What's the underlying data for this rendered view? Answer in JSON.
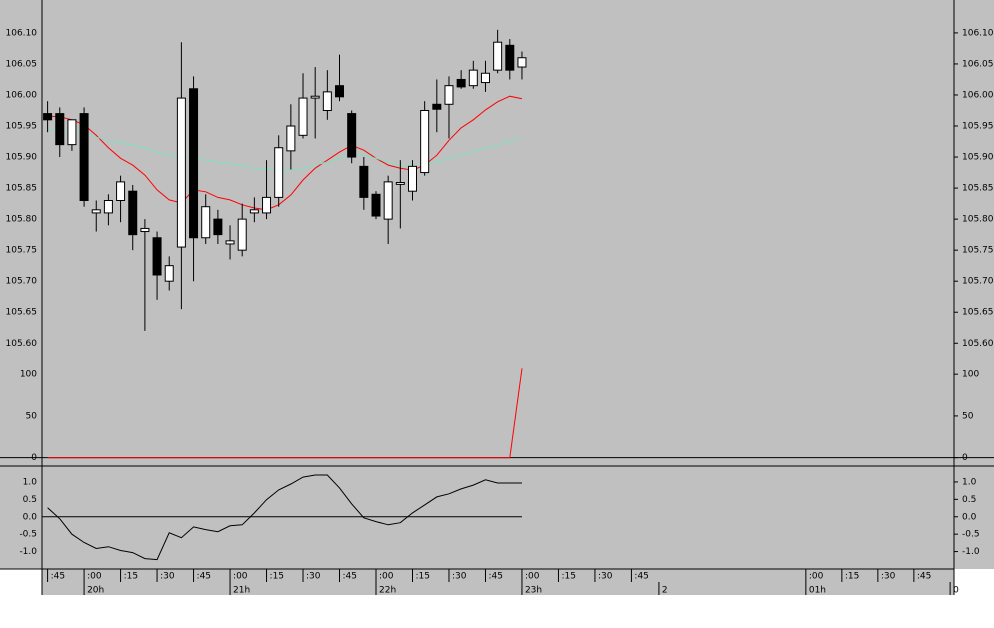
{
  "chart_data": [
    {
      "type": "candlestick",
      "x": [
        1185,
        1190,
        1195,
        1200,
        1205,
        1210,
        1215,
        1220,
        1225,
        1230,
        1235,
        1240,
        1245,
        1250,
        1255,
        1260,
        1265,
        1270,
        1275,
        1280,
        1285,
        1290,
        1295,
        1300,
        1305,
        1310,
        1315,
        1320,
        1325,
        1330,
        1335,
        1340,
        1345,
        1350,
        1355,
        1360,
        1365,
        1370,
        1375,
        1380
      ],
      "open": [
        105.97,
        105.97,
        105.92,
        105.97,
        105.81,
        105.81,
        105.83,
        105.845,
        105.78,
        105.77,
        105.7,
        105.755,
        106.01,
        105.77,
        105.8,
        105.76,
        105.75,
        105.81,
        105.81,
        105.835,
        105.91,
        105.935,
        105.995,
        105.975,
        106.015,
        105.97,
        105.885,
        105.84,
        105.8,
        105.856,
        105.845,
        105.875,
        105.985,
        105.985,
        106.025,
        106.015,
        106.02,
        106.04,
        106.08,
        106.045
      ],
      "high": [
        105.99,
        105.98,
        105.96,
        105.98,
        105.83,
        105.84,
        105.87,
        105.855,
        105.8,
        105.78,
        105.74,
        106.085,
        106.03,
        105.84,
        105.815,
        105.79,
        105.825,
        105.835,
        105.895,
        105.935,
        105.985,
        106.035,
        106.045,
        106.04,
        106.065,
        105.975,
        105.9,
        105.845,
        105.87,
        105.895,
        105.895,
        105.99,
        106.025,
        106.03,
        106.04,
        106.055,
        106.055,
        106.105,
        106.09,
        106.07
      ],
      "low": [
        105.94,
        105.9,
        105.91,
        105.82,
        105.78,
        105.79,
        105.795,
        105.75,
        105.62,
        105.67,
        105.685,
        105.655,
        105.7,
        105.76,
        105.76,
        105.735,
        105.74,
        105.795,
        105.8,
        105.82,
        105.88,
        105.93,
        105.93,
        105.96,
        105.99,
        105.89,
        105.815,
        105.8,
        105.76,
        105.785,
        105.83,
        105.87,
        105.94,
        105.93,
        106.01,
        106.01,
        106.005,
        106.035,
        106.025,
        106.025
      ],
      "close": [
        105.96,
        105.92,
        105.96,
        105.83,
        105.815,
        105.83,
        105.86,
        105.775,
        105.785,
        105.71,
        105.725,
        105.995,
        105.77,
        105.82,
        105.775,
        105.765,
        105.8,
        105.815,
        105.835,
        105.915,
        105.95,
        105.995,
        105.998,
        106.005,
        105.997,
        105.9,
        105.835,
        105.805,
        105.86,
        105.859,
        105.885,
        105.975,
        105.977,
        106.015,
        106.013,
        106.04,
        106.035,
        106.085,
        106.04,
        106.06
      ],
      "up_color": "#ffffff",
      "down_color": "#000000",
      "lines": [
        {
          "color": "#ff0000",
          "values": [
            105.966,
            105.965,
            105.96,
            105.952,
            105.935,
            105.915,
            105.898,
            105.887,
            105.871,
            105.847,
            105.831,
            105.826,
            105.847,
            105.844,
            105.835,
            105.831,
            105.823,
            105.818,
            105.815,
            105.823,
            105.839,
            105.863,
            105.882,
            105.895,
            105.908,
            105.919,
            105.911,
            105.898,
            105.887,
            105.882,
            105.879,
            105.887,
            105.903,
            105.927,
            105.947,
            105.96,
            105.976,
            105.989,
            105.998,
            105.994
          ]
        },
        {
          "color": "#7fe0c0",
          "values": [
            105.944,
            105.944,
            105.942,
            105.939,
            105.932,
            105.927,
            105.923,
            105.919,
            105.915,
            105.908,
            105.903,
            105.9,
            105.898,
            105.895,
            105.892,
            105.889,
            105.886,
            105.882,
            105.881,
            105.879,
            105.879,
            105.882,
            105.887,
            105.892,
            105.897,
            105.902,
            105.903,
            105.898,
            105.892,
            105.887,
            105.886,
            105.887,
            105.892,
            105.898,
            105.903,
            105.908,
            105.915,
            105.919,
            105.926,
            105.931
          ]
        }
      ],
      "ylim": [
        105.565,
        106.153
      ],
      "yticks": [
        {
          "value": 105.6,
          "label": "105.60"
        },
        105.65,
        {
          "value": 105.7,
          "label": "105.70"
        },
        105.75,
        {
          "value": 105.8,
          "label": "105.80"
        },
        105.85,
        {
          "value": 105.9,
          "label": "105.90"
        },
        105.95,
        {
          "value": 106,
          "label": "106.00"
        },
        106.05,
        {
          "value": 106.1,
          "label": "106.10"
        }
      ],
      "xlim": [
        1182.7,
        1557.6
      ],
      "xticks": [
        {
          "value": 1185,
          "label": ":45"
        },
        {
          "value": 1200,
          "label": ":00"
        },
        {
          "value": 1215,
          "label": ":15"
        },
        {
          "value": 1230,
          "label": ":30"
        },
        {
          "value": 1245,
          "label": ":45"
        },
        {
          "value": 1260,
          "label": ":00"
        },
        {
          "value": 1275,
          "label": ":15"
        },
        {
          "value": 1290,
          "label": ":30"
        },
        {
          "value": 1305,
          "label": ":45"
        },
        {
          "value": 1320,
          "label": ":00"
        },
        {
          "value": 1335,
          "label": ":15"
        },
        {
          "value": 1350,
          "label": ":30"
        },
        {
          "value": 1365,
          "label": ":45"
        },
        {
          "value": 1380,
          "label": ":00"
        },
        {
          "value": 1395,
          "label": ":15"
        },
        {
          "value": 1410,
          "label": ":30"
        },
        {
          "value": 1425,
          "label": ":45"
        },
        {
          "value": 1496.7,
          "label": ":00"
        },
        {
          "value": 1511.5,
          "label": ":15"
        },
        {
          "value": 1526.3,
          "label": ":30"
        },
        {
          "value": 1541.1,
          "label": ":45"
        }
      ],
      "x_hour_ticks": [
        {
          "value": 1200,
          "label": "20h"
        },
        {
          "value": 1260,
          "label": "21h"
        },
        {
          "value": 1320,
          "label": "22h"
        },
        {
          "value": 1380,
          "label": "23h"
        },
        {
          "value": 1436.3,
          "label": "2"
        },
        {
          "value": 1496.7,
          "label": "01h"
        },
        {
          "value": 1556,
          "label": "0"
        }
      ]
    },
    {
      "type": "line",
      "color": "#ff0000",
      "values": [
        0,
        0,
        0,
        0,
        0,
        0,
        0,
        0,
        0,
        0,
        0,
        0,
        0,
        0,
        0,
        0,
        0,
        0,
        0,
        0,
        0,
        0,
        0,
        0,
        0,
        0,
        0,
        0,
        0,
        0,
        0,
        0,
        0,
        0,
        0,
        0,
        0,
        0,
        0,
        107
      ],
      "ylim": [
        -10,
        111
      ],
      "yticks": [
        0,
        50,
        100
      ],
      "zero_line": true
    },
    {
      "type": "line",
      "color": "#000000",
      "values": [
        0.26,
        -0.06,
        -0.5,
        -0.74,
        -0.91,
        -0.86,
        -0.97,
        -1.03,
        -1.2,
        -1.23,
        -0.46,
        -0.6,
        -0.29,
        -0.37,
        -0.43,
        -0.26,
        -0.23,
        0.11,
        0.49,
        0.77,
        0.94,
        1.14,
        1.2,
        1.2,
        0.83,
        0.37,
        -0.03,
        -0.14,
        -0.23,
        -0.17,
        0.11,
        0.34,
        0.57,
        0.66,
        0.8,
        0.91,
        1.06,
        0.97,
        0.97,
        0.97
      ],
      "ylim": [
        -1.5,
        1.4
      ],
      "yticks": [
        {
          "value": 1,
          "label": "1.0"
        },
        0.5,
        {
          "value": 0,
          "label": "0.0"
        },
        -0.5,
        {
          "value": -1,
          "label": "-1.0"
        }
      ],
      "zero_line": true
    }
  ]
}
